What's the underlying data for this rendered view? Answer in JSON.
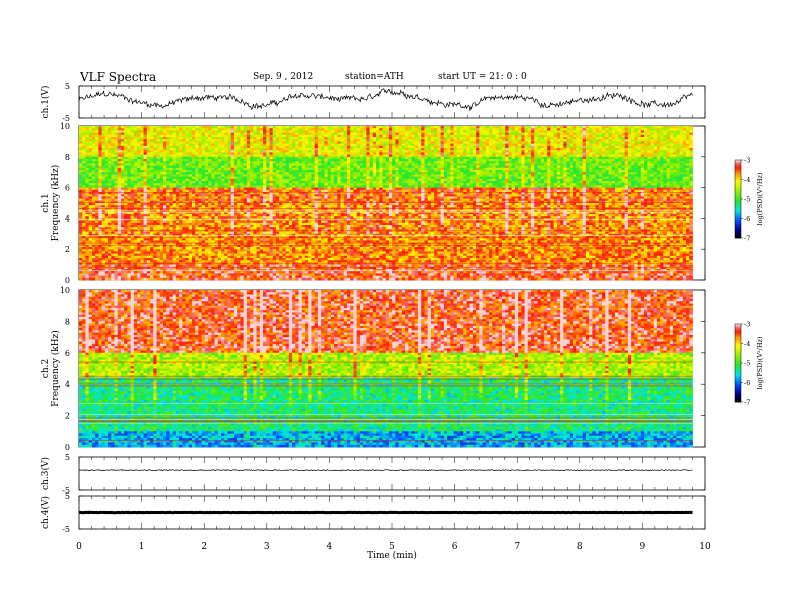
{
  "header": {
    "title": "VLF  Spectra",
    "date": "Sep. 9  , 2012",
    "station": "station=ATH",
    "start": "start  UT  =   21: 0  : 0"
  },
  "chart_data": [
    {
      "type": "line",
      "panel": "ch1_waveform",
      "ylabel": "ch.1(V)",
      "ylim": [
        -5,
        5
      ],
      "yticks": [
        "5",
        "-5"
      ],
      "x_range_min": [
        0,
        9.8
      ],
      "series": [
        {
          "shape": "noisy-wander",
          "baseline": 0.5,
          "amplitude": 2.5,
          "color": "#000000"
        }
      ]
    },
    {
      "type": "heatmap",
      "panel": "ch1_spectrogram",
      "ylabel": "ch.1\nFrequency  (kHz)",
      "ylim": [
        0,
        10
      ],
      "yticks": [
        "0",
        "2",
        "4",
        "6",
        "8",
        "10"
      ],
      "x_range_min": [
        0,
        9.8
      ],
      "colorbar": {
        "label": "log(PSD)(V²/Hz)",
        "ticks": [
          "-3",
          "-4",
          "-5",
          "-6",
          "-7"
        ],
        "range": [
          -7,
          -3
        ]
      },
      "description_levels": {
        "0-1 kHz": -3.4,
        "1-5 kHz": -3.7,
        "5-6 kHz": -3.6,
        "6-8 kHz": -4.8,
        "8-10 kHz": -4.2
      }
    },
    {
      "type": "heatmap",
      "panel": "ch2_spectrogram",
      "ylabel": "ch.2\nFrequency  (kHz)",
      "ylim": [
        0,
        10
      ],
      "yticks": [
        "0",
        "2",
        "4",
        "6",
        "8",
        "10"
      ],
      "x_range_min": [
        0,
        9.8
      ],
      "colorbar": {
        "label": "log(PSD)(V²/Hz)",
        "ticks": [
          "-3",
          "-4",
          "-5",
          "-6",
          "-7"
        ],
        "range": [
          -7,
          -3
        ]
      },
      "description_levels": {
        "0-1 kHz": -5.8,
        "1-4.5 kHz": -5.3,
        "4.5-6 kHz": -4.5,
        "6-10 kHz": -3.4
      }
    },
    {
      "type": "line",
      "panel": "ch3_waveform",
      "ylabel": "ch.3(V)",
      "ylim": [
        -5,
        5
      ],
      "yticks": [
        "5",
        "-5"
      ],
      "x_range_min": [
        0,
        9.8
      ],
      "series": [
        {
          "shape": "flat",
          "baseline": 1.0,
          "amplitude": 0.15,
          "color": "#000000"
        }
      ]
    },
    {
      "type": "line",
      "panel": "ch4_waveform",
      "ylabel": "ch.4(V)",
      "ylim": [
        -5,
        5
      ],
      "yticks": [
        "5",
        "-5"
      ],
      "x_range_min": [
        0,
        9.8
      ],
      "series": [
        {
          "shape": "flat-thick",
          "baseline": 0.0,
          "amplitude": 0.05,
          "color": "#000000"
        }
      ]
    }
  ],
  "xaxis": {
    "label": "Time  (min)",
    "ticks": [
      "0",
      "1",
      "2",
      "3",
      "4",
      "5",
      "6",
      "7",
      "8",
      "9",
      "10"
    ],
    "xlim": [
      0,
      10
    ]
  }
}
